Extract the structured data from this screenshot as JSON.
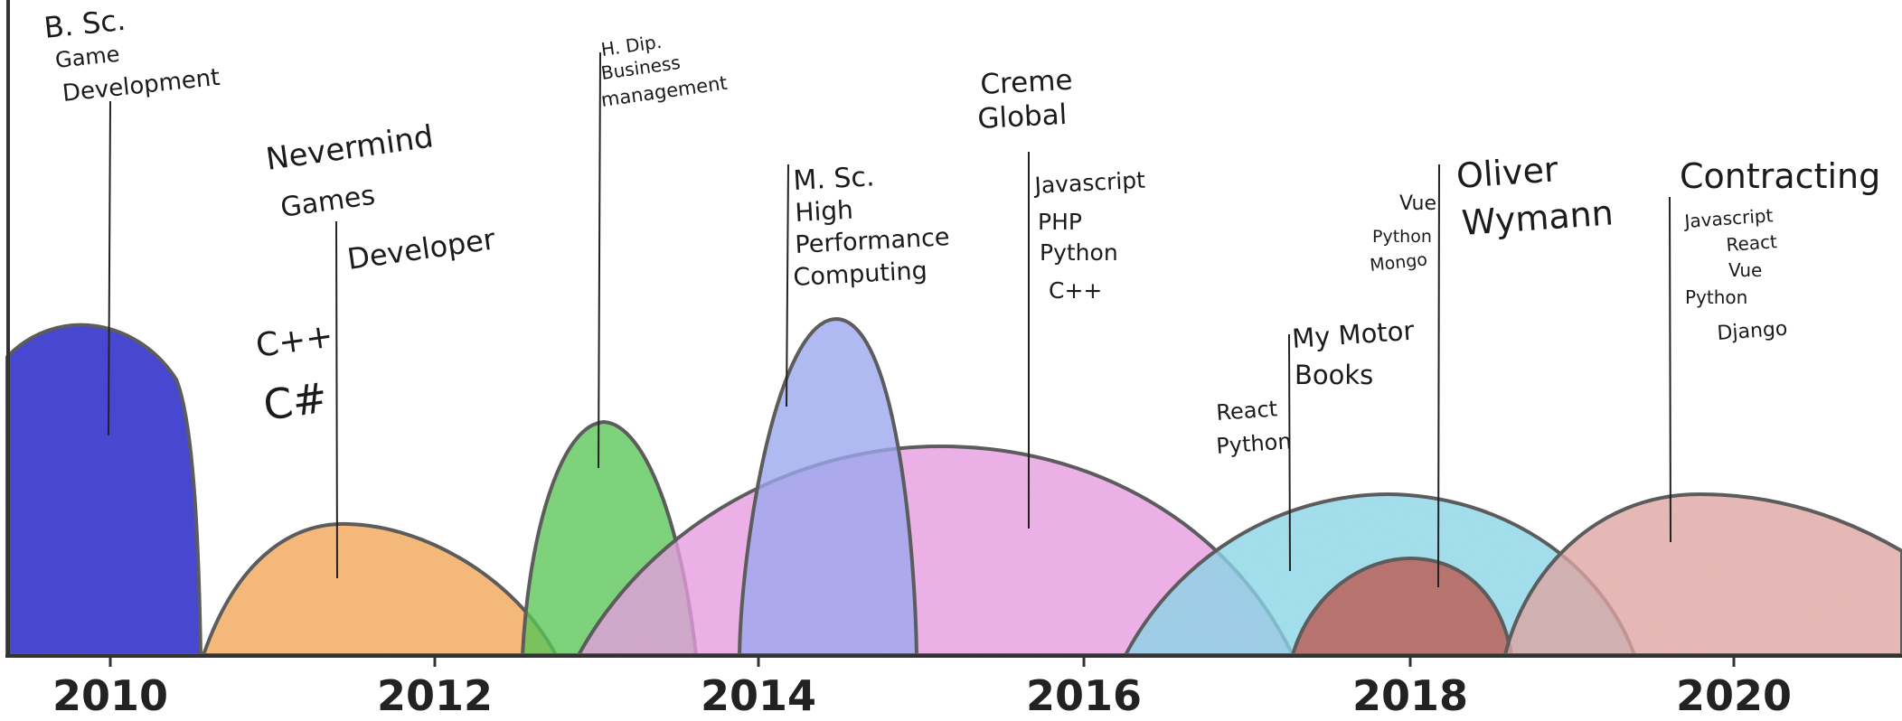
{
  "colors": {
    "bsc": "#4a48d4",
    "nevermind": "#f6a85a",
    "hdip": "#5cc95a",
    "msc": "#9eaaf2",
    "creme": "#ea9fe4",
    "mymotor": "#8dd9ea",
    "oliver": "#c05a50",
    "contracting": "#e2a8a5",
    "outline": "#5e5e5e"
  },
  "axis": {
    "years": [
      "2010",
      "2012",
      "2014",
      "2016",
      "2018",
      "2020"
    ]
  },
  "items": [
    {
      "key": "bsc",
      "title": [
        "B. Sc.",
        "Game",
        "Development"
      ],
      "skills": []
    },
    {
      "key": "nevermind",
      "title": [
        "Nevermind",
        "Games"
      ],
      "role": "Developer",
      "skills": [
        "C++",
        "C#"
      ]
    },
    {
      "key": "hdip",
      "title": [
        "H. Dip.",
        "Business",
        "management"
      ],
      "skills": []
    },
    {
      "key": "msc",
      "title": [
        "M. Sc.",
        "High",
        "Performance",
        "Computing"
      ],
      "skills": []
    },
    {
      "key": "creme",
      "title": [
        "Creme",
        "Global"
      ],
      "skills": [
        "Javascript",
        "PHP",
        "Python",
        "C++"
      ]
    },
    {
      "key": "mymotor",
      "title": [
        "My Motor",
        "Books"
      ],
      "skills": [
        "React",
        "Python"
      ]
    },
    {
      "key": "oliver",
      "title": [
        "Oliver",
        "Wymann"
      ],
      "skills": [
        "Vue",
        "Python",
        "Mongo"
      ]
    },
    {
      "key": "contracting",
      "title": [
        "Contracting"
      ],
      "skills": [
        "Javascript",
        "React",
        "Vue",
        "Python",
        "Django"
      ]
    }
  ]
}
